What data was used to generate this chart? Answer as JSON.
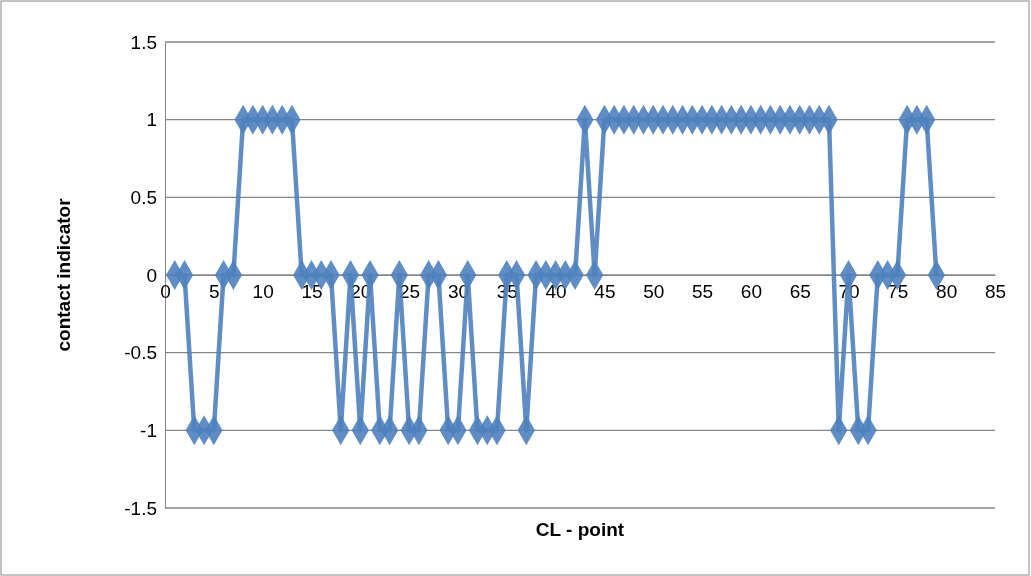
{
  "chart_data": {
    "type": "line",
    "xlabel": "CL - point",
    "ylabel": "contact indicator",
    "x": [
      1,
      2,
      3,
      4,
      5,
      6,
      7,
      8,
      9,
      10,
      11,
      12,
      13,
      14,
      15,
      16,
      17,
      18,
      19,
      20,
      21,
      22,
      23,
      24,
      25,
      26,
      27,
      28,
      29,
      30,
      31,
      32,
      33,
      34,
      35,
      36,
      37,
      38,
      39,
      40,
      41,
      42,
      43,
      44,
      45,
      46,
      47,
      48,
      49,
      50,
      51,
      52,
      53,
      54,
      55,
      56,
      57,
      58,
      59,
      60,
      61,
      62,
      63,
      64,
      65,
      66,
      67,
      68,
      69,
      70,
      71,
      72,
      73,
      74,
      75,
      76,
      77,
      78,
      79
    ],
    "series": [
      {
        "color": "#4f81bd",
        "values": [
          0,
          0,
          -1,
          -1,
          -1,
          0,
          0,
          1,
          1,
          1,
          1,
          1,
          1,
          0,
          0,
          0,
          0,
          -1,
          0,
          -1,
          0,
          -1,
          -1,
          0,
          -1,
          -1,
          0,
          0,
          -1,
          -1,
          0,
          -1,
          -1,
          -1,
          0,
          0,
          -1,
          0,
          0,
          0,
          0,
          0,
          1,
          0,
          1,
          1,
          1,
          1,
          1,
          1,
          1,
          1,
          1,
          1,
          1,
          1,
          1,
          1,
          1,
          1,
          1,
          1,
          1,
          1,
          1,
          1,
          1,
          1,
          -1,
          0,
          -1,
          -1,
          0,
          0,
          0,
          1,
          1,
          1,
          0
        ]
      }
    ],
    "xlim": [
      0,
      85
    ],
    "xticks": [
      0,
      5,
      10,
      15,
      20,
      25,
      30,
      35,
      40,
      45,
      50,
      55,
      60,
      65,
      70,
      75,
      80,
      85
    ],
    "ylim": [
      -1.5,
      1.5
    ],
    "yticks": [
      -1.5,
      -1,
      -0.5,
      0,
      0.5,
      1,
      1.5
    ],
    "grid": "y",
    "marker": "diamond",
    "line_style": "solid"
  }
}
